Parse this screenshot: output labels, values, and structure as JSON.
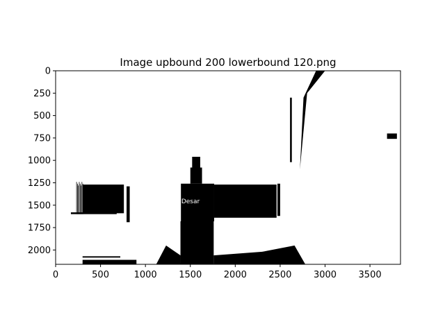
{
  "chart_data": {
    "type": "heatmap",
    "title": "Image upbound 200 lowerbound 120.png",
    "xlabel": "",
    "ylabel": "",
    "xlim": [
      0,
      3840
    ],
    "ylim": [
      2160,
      0
    ],
    "xticks": [
      "0",
      "500",
      "1000",
      "1500",
      "2000",
      "2500",
      "3000",
      "3500"
    ],
    "yticks": [
      "0",
      "250",
      "500",
      "750",
      "1000",
      "1250",
      "1500",
      "1750",
      "2000"
    ],
    "grid": false,
    "colormap": [
      "#ffffff",
      "#000000"
    ],
    "image_label": "Desar",
    "image_text_color": "#ffffff"
  }
}
